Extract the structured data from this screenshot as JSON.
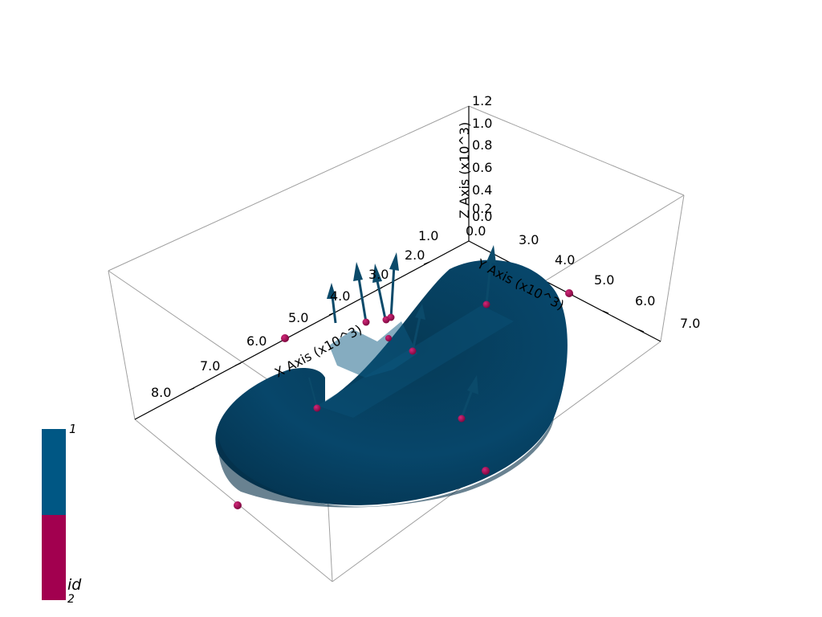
{
  "scene": {
    "axes": {
      "x_title": "X Axis (x10^3)",
      "y_title": "Y Axis (x10^3)",
      "z_title": "Z Axis (x10^3)",
      "x_ticks": [
        "1.0",
        "2.0",
        "3.0",
        "4.0",
        "5.0",
        "6.0",
        "7.0",
        "8.0"
      ],
      "y_ticks": [
        "0.0",
        "3.0",
        "4.0",
        "5.0",
        "6.0",
        "7.0"
      ],
      "z_ticks": [
        "0.0",
        "0.2",
        "0.4",
        "0.6",
        "0.8",
        "1.0",
        "1.2"
      ]
    },
    "colors": {
      "surface": "#06405e",
      "surface_dark": "#032c42",
      "arrows": "#0b4a6a",
      "points": "#9a0a4c",
      "box_lines": "#9a9a9a",
      "axis_lines": "#000000"
    }
  },
  "scalar_bar": {
    "title": "id",
    "top_label": "1",
    "bottom_label": "2",
    "colors": [
      "#005784",
      "#a2004f"
    ]
  }
}
